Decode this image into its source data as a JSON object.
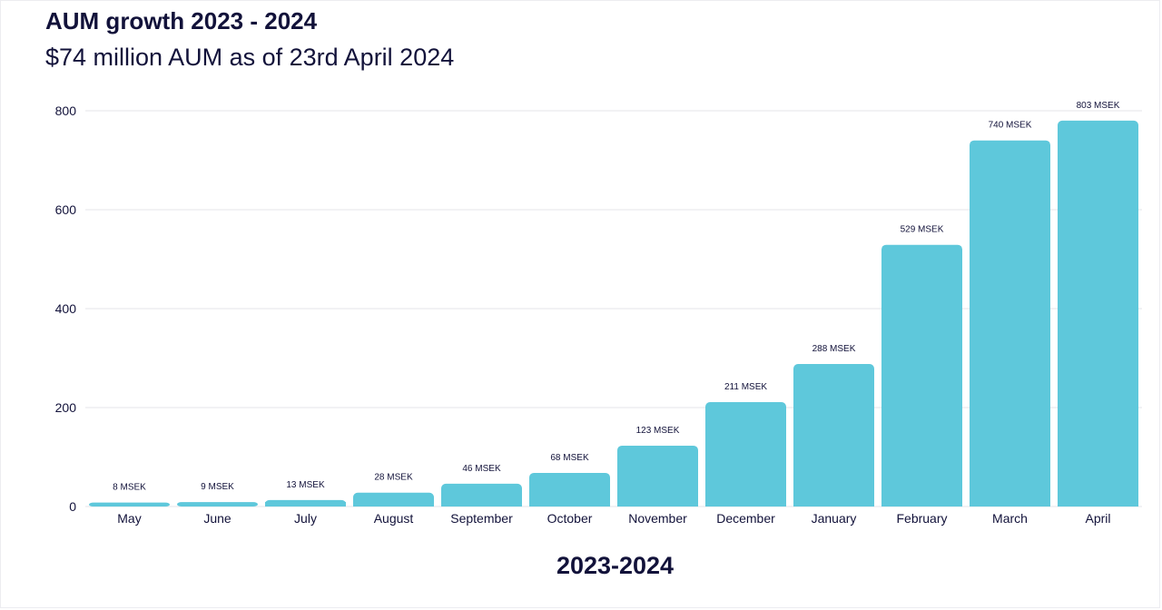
{
  "title": "AUM growth 2023 - 2024",
  "subtitle": "$74 million AUM as of 23rd April 2024",
  "chart_data": {
    "type": "bar",
    "title": "AUM growth 2023 - 2024",
    "subtitle": "$74 million AUM as of 23rd April 2024",
    "xlabel": "2023-2024",
    "ylabel": "",
    "categories": [
      "May",
      "June",
      "July",
      "August",
      "September",
      "October",
      "November",
      "December",
      "January",
      "February",
      "March",
      "April"
    ],
    "values": [
      8,
      9,
      13,
      28,
      46,
      68,
      123,
      211,
      288,
      529,
      740,
      803
    ],
    "bar_heights_plotted": [
      8,
      9,
      13,
      28,
      46,
      68,
      123,
      211,
      288,
      529,
      740,
      780
    ],
    "data_labels": [
      "8 MSEK",
      "9 MSEK",
      "13 MSEK",
      "28 MSEK",
      "46 MSEK",
      "68 MSEK",
      "123 MSEK",
      "211 MSEK",
      "288 MSEK",
      "529 MSEK",
      "740 MSEK",
      "803 MSEK"
    ],
    "yticks": [
      0,
      200,
      400,
      600,
      800
    ],
    "ylim": [
      0,
      800
    ],
    "grid": true,
    "legend": "none",
    "colors": {
      "bar": "#5EC8DB",
      "grid": "#e6e6ea",
      "text": "#12123a"
    }
  }
}
